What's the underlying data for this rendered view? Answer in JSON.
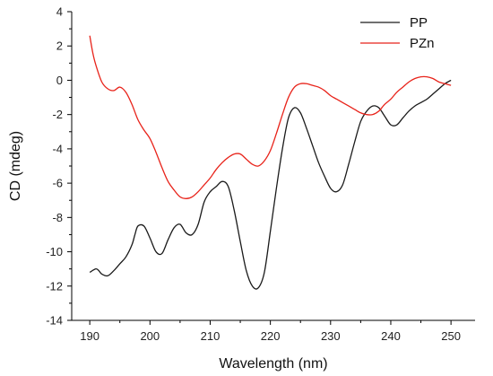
{
  "chart_data": {
    "type": "line",
    "title": "",
    "xlabel": "Wavelength (nm)",
    "ylabel": "CD (mdeg)",
    "xlim": [
      187,
      254
    ],
    "ylim": [
      -14,
      4
    ],
    "xticks": [
      190,
      200,
      210,
      220,
      230,
      240,
      250
    ],
    "yticks": [
      4,
      2,
      0,
      -2,
      -4,
      -6,
      -8,
      -10,
      -12,
      -14
    ],
    "grid": false,
    "legend_position": "top-right",
    "colors": {
      "PP": "#1a1a1a",
      "PZn": "#e8231a"
    },
    "series": [
      {
        "name": "PP",
        "x": [
          190,
          191,
          191.5,
          192,
          193,
          194,
          195,
          196,
          197,
          197.5,
          198,
          199,
          200,
          201,
          202,
          203,
          204,
          205,
          206,
          207,
          208,
          209,
          210,
          211,
          212,
          213,
          214,
          215,
          216,
          217,
          218,
          219,
          220,
          221,
          222,
          223,
          224,
          225,
          226,
          227,
          228,
          229,
          230,
          231,
          232,
          233,
          234,
          235,
          236,
          237,
          238,
          239,
          240,
          241,
          242,
          243,
          244,
          245,
          246,
          247,
          248,
          249,
          250
        ],
        "y": [
          -11.2,
          -11.0,
          -11.1,
          -11.3,
          -11.4,
          -11.1,
          -10.7,
          -10.3,
          -9.6,
          -9.0,
          -8.5,
          -8.5,
          -9.2,
          -10.0,
          -10.1,
          -9.3,
          -8.6,
          -8.4,
          -8.9,
          -9.0,
          -8.4,
          -7.1,
          -6.5,
          -6.2,
          -5.9,
          -6.2,
          -7.6,
          -9.4,
          -11.1,
          -12.0,
          -12.1,
          -11.2,
          -8.8,
          -6.3,
          -4.0,
          -2.2,
          -1.6,
          -1.9,
          -2.8,
          -3.8,
          -4.8,
          -5.6,
          -6.3,
          -6.5,
          -6.1,
          -4.9,
          -3.6,
          -2.4,
          -1.8,
          -1.5,
          -1.6,
          -2.1,
          -2.6,
          -2.6,
          -2.2,
          -1.8,
          -1.5,
          -1.3,
          -1.1,
          -0.8,
          -0.5,
          -0.2,
          0.0
        ]
      },
      {
        "name": "PZn",
        "x": [
          190,
          190.5,
          191,
          192,
          193,
          194,
          195,
          196,
          197,
          198,
          199,
          200,
          201,
          202,
          203,
          204,
          205,
          206,
          207,
          208,
          209,
          210,
          211,
          212,
          213,
          214,
          215,
          216,
          217,
          218,
          219,
          220,
          221,
          222,
          223,
          224,
          225,
          226,
          227,
          228,
          229,
          230,
          231,
          232,
          233,
          234,
          235,
          236,
          237,
          238,
          239,
          240,
          241,
          242,
          243,
          244,
          245,
          246,
          247,
          248,
          249,
          250
        ],
        "y": [
          2.6,
          1.6,
          0.9,
          -0.1,
          -0.5,
          -0.6,
          -0.4,
          -0.7,
          -1.4,
          -2.3,
          -2.9,
          -3.4,
          -4.2,
          -5.1,
          -5.9,
          -6.4,
          -6.8,
          -6.9,
          -6.8,
          -6.5,
          -6.1,
          -5.7,
          -5.2,
          -4.8,
          -4.5,
          -4.3,
          -4.3,
          -4.6,
          -4.9,
          -5.0,
          -4.7,
          -4.1,
          -3.1,
          -2.0,
          -1.0,
          -0.4,
          -0.2,
          -0.2,
          -0.3,
          -0.4,
          -0.6,
          -0.9,
          -1.1,
          -1.3,
          -1.5,
          -1.7,
          -1.9,
          -2.0,
          -2.0,
          -1.8,
          -1.4,
          -1.1,
          -0.7,
          -0.4,
          -0.1,
          0.1,
          0.2,
          0.2,
          0.1,
          -0.1,
          -0.2,
          -0.3
        ]
      }
    ]
  }
}
